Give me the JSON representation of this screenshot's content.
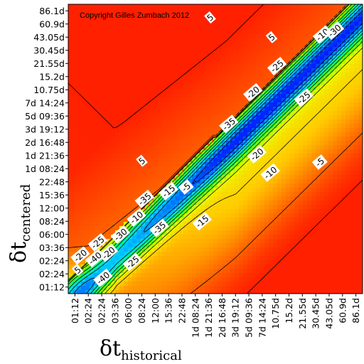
{
  "chart_data": {
    "type": "heatmap",
    "title": "",
    "annotation": "Copyright Gilles Zumbach 2012",
    "xlabel": {
      "main": "δt",
      "sub": "historical"
    },
    "ylabel": {
      "main": "δt",
      "sub": "centered"
    },
    "x_ticks": [
      "01:12",
      "02:24",
      "02:24",
      "03:36",
      "06:00",
      "08:24",
      "12:00",
      "15:36",
      "22:48",
      "1d 08:24",
      "1d 21:36",
      "2d 16:48",
      "3d 19:12",
      "5d 09:36",
      "7d 14:24",
      "10.75d",
      "15.2d",
      "21.55d",
      "30.45d",
      "43.05d",
      "60.9d",
      "86.1d"
    ],
    "y_ticks": [
      "01:12",
      "02:24",
      "02:24",
      "03:36",
      "06:00",
      "08:24",
      "12:00",
      "15:36",
      "22:48",
      "1d 08:24",
      "1d 21:36",
      "2d 16:48",
      "3d 19:12",
      "5d 09:36",
      "7d 14:24",
      "10.75d",
      "15.2d",
      "21.55d",
      "30.45d",
      "43.05d",
      "60.9d",
      "86.1d"
    ],
    "colorscale": [
      "#0000ff",
      "#0077ff",
      "#00d2ff",
      "#00ff80",
      "#60ff00",
      "#e8ff00",
      "#ffcc00",
      "#ff7a00",
      "#ff2000"
    ],
    "value_range": [
      -45,
      10
    ],
    "contour_labels": [
      {
        "text": "5",
        "x": 0.2,
        "y": 1.3,
        "bg": "#ff8a00"
      },
      {
        "text": "5",
        "x": 5.0,
        "y": 9.6,
        "bg": "#ff9a00"
      },
      {
        "text": "5",
        "x": 14.7,
        "y": 19.0,
        "bg": "#ff8000"
      },
      {
        "text": "5",
        "x": 10.1,
        "y": 20.5,
        "bg": "#ff7400"
      },
      {
        "text": "-10",
        "x": 18.5,
        "y": 19.2,
        "bg": "#ff3000"
      },
      {
        "text": "-25",
        "x": 15.1,
        "y": 16.8,
        "bg": "#30d6ff"
      },
      {
        "text": "-30",
        "x": 19.4,
        "y": 19.5,
        "bg": "#00c0ff"
      },
      {
        "text": "-20",
        "x": 13.3,
        "y": 14.8,
        "bg": "#40e2ff"
      },
      {
        "text": "-25",
        "x": 17.1,
        "y": 14.4,
        "bg": "#30e8c0"
      },
      {
        "text": "-35",
        "x": 11.5,
        "y": 12.4,
        "bg": "#0080ff"
      },
      {
        "text": "-20",
        "x": 13.6,
        "y": 10.1,
        "bg": "#30e0d0"
      },
      {
        "text": "-10",
        "x": 14.6,
        "y": 8.7,
        "bg": "#90f040"
      },
      {
        "text": "-5",
        "x": 18.3,
        "y": 9.5,
        "bg": "#c8f000"
      },
      {
        "text": "-5",
        "x": 8.3,
        "y": 7.6,
        "bg": "#ff9a00"
      },
      {
        "text": "-15",
        "x": 7.0,
        "y": 7.3,
        "bg": "#ffb000"
      },
      {
        "text": "-35",
        "x": 5.2,
        "y": 6.7,
        "bg": "#0070ff"
      },
      {
        "text": "-35",
        "x": 6.3,
        "y": 4.5,
        "bg": "#30d8ff"
      },
      {
        "text": "-10",
        "x": 4.6,
        "y": 5.3,
        "bg": "#60ff40"
      },
      {
        "text": "-15",
        "x": 9.5,
        "y": 5.0,
        "bg": "#40ff60"
      },
      {
        "text": "-30",
        "x": 3.4,
        "y": 4.0,
        "bg": "#00a0ff"
      },
      {
        "text": "-20",
        "x": 2.5,
        "y": 2.6,
        "bg": "#40e8ff"
      },
      {
        "text": "-25",
        "x": 1.7,
        "y": 3.4,
        "bg": "#40c0ff"
      },
      {
        "text": "-40",
        "x": 1.5,
        "y": 2.2,
        "bg": "#00a0ff"
      },
      {
        "text": "-25",
        "x": 4.3,
        "y": 1.9,
        "bg": "#30e0c0"
      },
      {
        "text": "-40",
        "x": 2.1,
        "y": 0.7,
        "bg": "#00a0ff"
      },
      {
        "text": "-20",
        "x": 0.4,
        "y": 2.4,
        "bg": "#0000ff"
      }
    ]
  }
}
